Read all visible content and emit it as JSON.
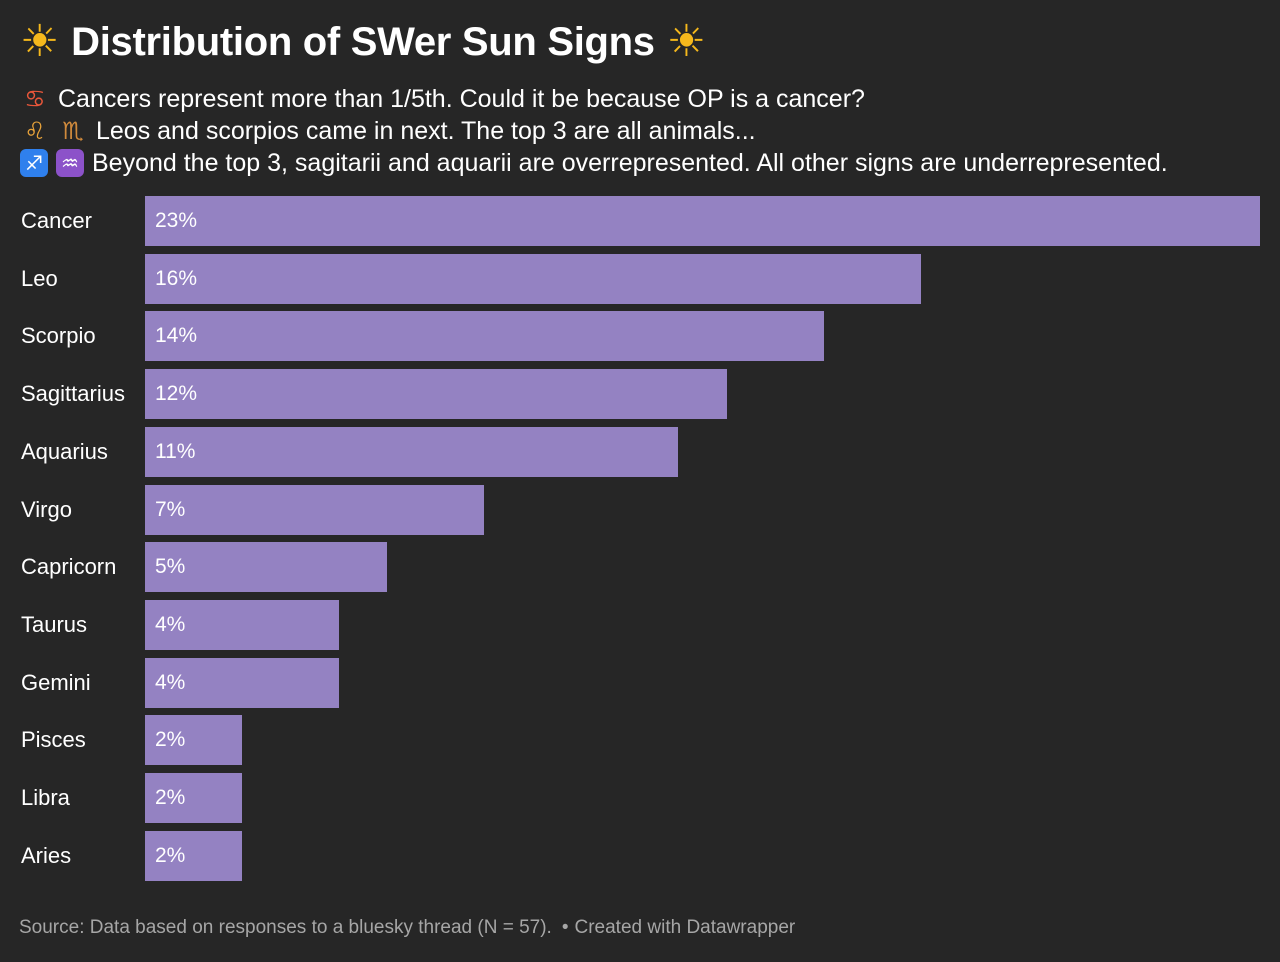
{
  "title": {
    "text": "Distribution of SWer Sun Signs",
    "left_icon": "sun-with-face-icon",
    "right_icon": "sun-with-face-icon",
    "sun_glyph": "☀"
  },
  "subtitle": {
    "lines": [
      {
        "icons": [
          {
            "name": "crab-icon",
            "glyph": "♋"
          }
        ],
        "text": "Cancers represent more than 1/5th. Could it be because OP is a cancer?"
      },
      {
        "icons": [
          {
            "name": "lion-face-icon",
            "glyph": "♌"
          },
          {
            "name": "scorpion-icon",
            "glyph": "♏"
          }
        ],
        "text": "Leos and scorpios came in next. The top 3 are all animals..."
      },
      {
        "icons": [
          {
            "name": "sagittarius-icon",
            "glyph": "♐"
          },
          {
            "name": "aquarius-icon",
            "glyph": "♒"
          }
        ],
        "text": "Beyond the top 3, sagitarii and aquarii are overrepresented. All other signs are underrepresented."
      }
    ]
  },
  "chart_data": {
    "type": "bar",
    "orientation": "horizontal",
    "title": "Distribution of SWer Sun Signs",
    "categories": [
      "Cancer",
      "Leo",
      "Scorpio",
      "Sagittarius",
      "Aquarius",
      "Virgo",
      "Capricorn",
      "Taurus",
      "Gemini",
      "Pisces",
      "Libra",
      "Aries"
    ],
    "values": [
      23,
      16,
      14,
      12,
      11,
      7,
      5,
      4,
      4,
      2,
      2,
      2
    ],
    "value_labels": [
      "23%",
      "16%",
      "14%",
      "12%",
      "11%",
      "7%",
      "5%",
      "4%",
      "4%",
      "2%",
      "2%",
      "2%"
    ],
    "unit": "%",
    "xlim": [
      0,
      23
    ],
    "bar_color": "#9482c2",
    "xlabel": "",
    "ylabel": "",
    "grid": false
  },
  "footer": {
    "source": "Source: Data based on responses to a bluesky thread (N = 57).",
    "separator": "•",
    "credit": "Created with Datawrapper"
  },
  "colors": {
    "background": "#262626",
    "bar": "#9482c2",
    "text": "#ffffff",
    "footer_text": "#a6a6a6",
    "sun": "#f5b81c"
  }
}
